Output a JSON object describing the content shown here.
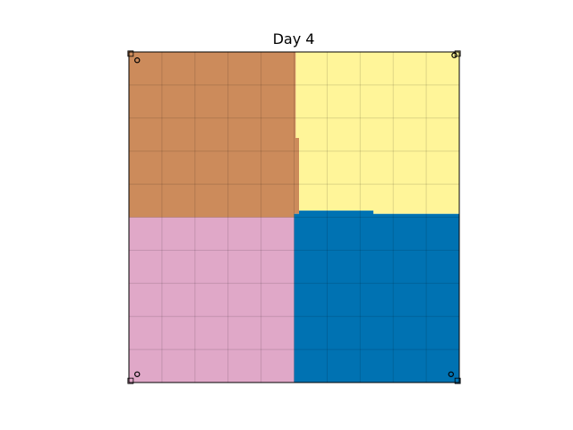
{
  "chart_data": {
    "type": "heatmap",
    "title": "Day 4",
    "xlabel": "",
    "ylabel": "",
    "xlim": [
      0,
      10
    ],
    "ylim": [
      0,
      10
    ],
    "grid": true,
    "regions": [
      {
        "id": "top-left",
        "color": "#cc8b5b",
        "polygon": [
          [
            0,
            10
          ],
          [
            5.05,
            10
          ],
          [
            5.05,
            7.4
          ],
          [
            5.15,
            7.4
          ],
          [
            5.15,
            5.1
          ],
          [
            5.0,
            5.1
          ],
          [
            5.0,
            5.0
          ],
          [
            0,
            5.0
          ]
        ]
      },
      {
        "id": "top-right",
        "color": "#fff599",
        "polygon": [
          [
            5.05,
            10
          ],
          [
            10,
            10
          ],
          [
            10,
            5.1
          ],
          [
            7.4,
            5.1
          ],
          [
            7.4,
            5.2
          ],
          [
            5.15,
            5.2
          ],
          [
            5.15,
            7.4
          ],
          [
            5.05,
            7.4
          ]
        ]
      },
      {
        "id": "bottom-left",
        "color": "#e0a8c8",
        "polygon": [
          [
            0,
            5.0
          ],
          [
            5.0,
            5.0
          ],
          [
            5.0,
            0
          ],
          [
            0,
            0
          ]
        ]
      },
      {
        "id": "bottom-right",
        "color": "#0072b2",
        "polygon": [
          [
            5.0,
            5.0
          ],
          [
            5.0,
            5.1
          ],
          [
            5.15,
            5.1
          ],
          [
            5.15,
            5.2
          ],
          [
            7.4,
            5.2
          ],
          [
            7.4,
            5.1
          ],
          [
            10,
            5.1
          ],
          [
            10,
            0
          ],
          [
            5.0,
            0
          ]
        ]
      }
    ],
    "markers": [
      {
        "id": "tl",
        "x": 0.25,
        "y": 9.75
      },
      {
        "id": "tr",
        "x": 9.85,
        "y": 9.9
      },
      {
        "id": "bl",
        "x": 0.25,
        "y": 0.25
      },
      {
        "id": "br",
        "x": 9.75,
        "y": 0.25
      }
    ],
    "corner_squares": [
      {
        "id": "tl",
        "x": 0.05,
        "y": 9.95,
        "color": "#cc8b5b"
      },
      {
        "id": "tr",
        "x": 9.95,
        "y": 9.95,
        "color": "#fff599"
      },
      {
        "id": "bl",
        "x": 0.05,
        "y": 0.05,
        "color": "#e0a8c8"
      },
      {
        "id": "br",
        "x": 9.95,
        "y": 0.05,
        "color": "#0072b2"
      }
    ]
  }
}
